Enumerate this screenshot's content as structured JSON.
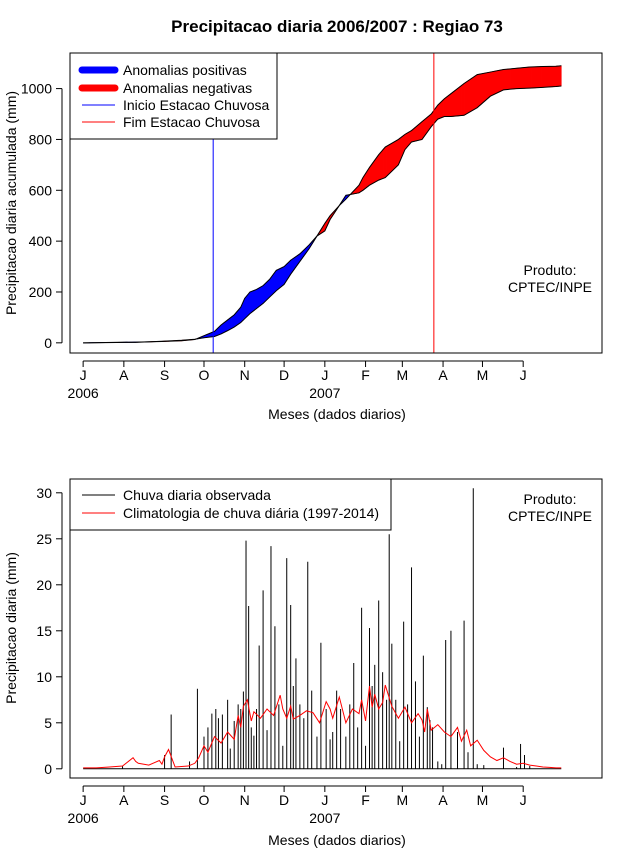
{
  "chart_data": [
    {
      "type": "area",
      "title": "Precipitacao diaria 2006/2007 : Regiao 73",
      "xlabel": "Meses (dados diarios)",
      "ylabel": "Precipitacao diaria acumulada (mm)",
      "ylim": [
        -40,
        1140
      ],
      "yticks": [
        0,
        200,
        400,
        600,
        800,
        1000
      ],
      "xlim": [
        -10,
        395
      ],
      "month_ticks": [
        {
          "label": "J",
          "day": 0
        },
        {
          "label": "A",
          "day": 31
        },
        {
          "label": "S",
          "day": 62
        },
        {
          "label": "O",
          "day": 92
        },
        {
          "label": "N",
          "day": 123
        },
        {
          "label": "D",
          "day": 153
        },
        {
          "label": "J",
          "day": 184
        },
        {
          "label": "F",
          "day": 215
        },
        {
          "label": "M",
          "day": 243
        },
        {
          "label": "A",
          "day": 274
        },
        {
          "label": "M",
          "day": 304
        },
        {
          "label": "J",
          "day": 335
        }
      ],
      "year_labels": [
        {
          "label": "2006",
          "day": 0
        },
        {
          "label": "2007",
          "day": 184
        }
      ],
      "onset_day": 99,
      "end_day": 267,
      "series": [
        {
          "name": "observed_cumulative",
          "x": [
            0,
            40,
            60,
            75,
            85,
            92,
            100,
            105,
            110,
            115,
            120,
            123,
            127,
            132,
            137,
            142,
            147,
            153,
            158,
            165,
            172,
            178,
            184,
            188,
            195,
            200,
            210,
            213,
            218,
            225,
            230,
            240,
            245,
            250,
            258,
            265,
            270,
            275,
            280,
            290,
            300,
            310,
            320,
            330,
            340,
            350,
            360,
            364
          ],
          "y": [
            0,
            3,
            5,
            8,
            13,
            28,
            45,
            70,
            90,
            110,
            140,
            175,
            200,
            210,
            225,
            250,
            285,
            300,
            325,
            350,
            385,
            420,
            440,
            485,
            540,
            580,
            590,
            600,
            620,
            640,
            650,
            700,
            760,
            790,
            800,
            850,
            880,
            890,
            890,
            895,
            925,
            970,
            995,
            1000,
            1002,
            1005,
            1008,
            1010
          ]
        },
        {
          "name": "climatological_cumulative",
          "x": [
            0,
            40,
            60,
            75,
            85,
            92,
            100,
            105,
            110,
            115,
            120,
            123,
            127,
            132,
            137,
            142,
            147,
            153,
            158,
            165,
            172,
            178,
            184,
            188,
            195,
            200,
            210,
            213,
            218,
            225,
            230,
            240,
            245,
            250,
            258,
            265,
            270,
            275,
            280,
            290,
            300,
            310,
            320,
            330,
            340,
            350,
            360,
            364
          ],
          "y": [
            0,
            2,
            6,
            10,
            14,
            20,
            25,
            35,
            48,
            62,
            80,
            95,
            115,
            135,
            155,
            180,
            205,
            230,
            270,
            320,
            370,
            420,
            470,
            500,
            540,
            565,
            620,
            650,
            690,
            740,
            770,
            800,
            820,
            835,
            870,
            900,
            935,
            960,
            980,
            1020,
            1055,
            1065,
            1075,
            1080,
            1085,
            1087,
            1088,
            1090
          ]
        }
      ],
      "legend": [
        {
          "label": "Anomalias positivas",
          "color": "#0000ff"
        },
        {
          "label": "Anomalias negativas",
          "color": "#ff0000"
        },
        {
          "label": "Inicio Estacao Chuvosa",
          "color": "#0000ff"
        },
        {
          "label": "Fim Estacao Chuvosa",
          "color": "#ff0000"
        }
      ],
      "legend_position": "top-left",
      "annotation": [
        "Produto:",
        "CPTEC/INPE"
      ]
    },
    {
      "type": "line",
      "title": "",
      "xlabel": "Meses (dados diarios)",
      "ylabel": "Precipitacao diaria (mm)",
      "ylim": [
        -1,
        31.5
      ],
      "yticks": [
        0,
        5,
        10,
        15,
        20,
        25,
        30
      ],
      "xlim": [
        -10,
        395
      ],
      "month_ticks": [
        {
          "label": "J",
          "day": 0
        },
        {
          "label": "A",
          "day": 31
        },
        {
          "label": "S",
          "day": 62
        },
        {
          "label": "O",
          "day": 92
        },
        {
          "label": "N",
          "day": 123
        },
        {
          "label": "D",
          "day": 153
        },
        {
          "label": "J",
          "day": 184
        },
        {
          "label": "F",
          "day": 215
        },
        {
          "label": "M",
          "day": 243
        },
        {
          "label": "A",
          "day": 274
        },
        {
          "label": "M",
          "day": 304
        },
        {
          "label": "J",
          "day": 335
        }
      ],
      "year_labels": [
        {
          "label": "2006",
          "day": 0
        },
        {
          "label": "2007",
          "day": 184
        }
      ],
      "series": [
        {
          "name": "Chuva diaria observada",
          "style": "spikes",
          "x": [
            30,
            62,
            67,
            81,
            87,
            92,
            95,
            98,
            101,
            103,
            106,
            110,
            112,
            115,
            118,
            120,
            122,
            124,
            126,
            128,
            130,
            132,
            134,
            137,
            140,
            143,
            146,
            149,
            152,
            155,
            158,
            160,
            162,
            165,
            168,
            171,
            174,
            178,
            181,
            185,
            188,
            190,
            193,
            196,
            200,
            203,
            206,
            209,
            212,
            215,
            218,
            220,
            222,
            225,
            228,
            231,
            233,
            235,
            238,
            241,
            244,
            247,
            250,
            253,
            256,
            259,
            262,
            264,
            266,
            270,
            273,
            276,
            280,
            285,
            290,
            293,
            297,
            300,
            305,
            320,
            330,
            333,
            336,
            340
          ],
          "y": [
            0.3,
            1.5,
            5.9,
            0.8,
            8.7,
            3.5,
            4.5,
            6.0,
            6.5,
            5.5,
            5.9,
            7.5,
            2.2,
            5.2,
            7.0,
            6.5,
            8.4,
            24.8,
            17.7,
            4.5,
            3.6,
            6.5,
            13.4,
            19.4,
            4.2,
            24.2,
            15.5,
            7.0,
            2.5,
            22.9,
            17.8,
            9.0,
            12.0,
            7.0,
            5.5,
            22.5,
            8.5,
            3.5,
            13.7,
            6.5,
            3.2,
            4.0,
            8.5,
            6.5,
            3.5,
            7.0,
            11.5,
            4.5,
            17.5,
            2.5,
            15.3,
            9.0,
            11.3,
            18.3,
            10.5,
            7.5,
            25.5,
            13.6,
            7.5,
            3.0,
            16.0,
            7.0,
            21.9,
            9.5,
            3.5,
            12.3,
            6.7,
            5.3,
            4.5,
            0.8,
            0.5,
            14.0,
            15.0,
            4.0,
            16.1,
            1.8,
            30.5,
            0.5,
            0.4,
            2.3,
            0.2,
            2.7,
            1.5,
            0.3
          ]
        },
        {
          "name": "Climatologia de chuva diária (1997-2014)",
          "style": "line",
          "x": [
            0,
            10,
            20,
            30,
            38,
            40,
            42,
            50,
            58,
            60,
            62,
            65,
            70,
            80,
            85,
            88,
            92,
            95,
            100,
            105,
            110,
            115,
            118,
            120,
            122,
            125,
            128,
            130,
            135,
            140,
            145,
            150,
            152,
            155,
            158,
            160,
            165,
            170,
            175,
            180,
            185,
            188,
            190,
            195,
            200,
            205,
            210,
            212,
            215,
            218,
            220,
            222,
            225,
            228,
            230,
            235,
            240,
            245,
            250,
            255,
            258,
            260,
            262,
            265,
            270,
            275,
            280,
            285,
            288,
            292,
            295,
            300,
            305,
            310,
            315,
            320,
            325,
            330,
            335,
            340,
            345,
            350,
            355,
            360,
            364
          ],
          "y": [
            0.1,
            0.1,
            0.2,
            0.3,
            1.2,
            0.8,
            0.6,
            0.4,
            0.9,
            0.5,
            1.3,
            2.1,
            0.2,
            0.3,
            0.6,
            1.2,
            2.5,
            1.8,
            3.5,
            2.8,
            4.0,
            3.2,
            5.8,
            4.5,
            6.8,
            7.5,
            5.2,
            6.2,
            5.5,
            6.5,
            5.8,
            8.0,
            6.5,
            5.5,
            6.8,
            5.4,
            5.8,
            6.3,
            6.1,
            5.0,
            7.3,
            6.5,
            5.5,
            7.8,
            5.0,
            6.5,
            6.0,
            7.5,
            5.2,
            9.0,
            6.7,
            8.1,
            6.5,
            7.2,
            9.1,
            6.8,
            5.5,
            6.7,
            5.0,
            6.0,
            5.3,
            4.0,
            6.5,
            4.2,
            4.8,
            4.0,
            3.5,
            4.5,
            3.0,
            4.2,
            2.5,
            3.1,
            2.0,
            1.3,
            0.9,
            1.2,
            0.8,
            0.5,
            0.6,
            0.4,
            0.3,
            0.2,
            0.15,
            0.1,
            0.1
          ]
        }
      ],
      "legend": [
        {
          "label": "Chuva diaria observada",
          "color": "#000000"
        },
        {
          "label": "Climatologia de chuva diária (1997-2014)",
          "color": "#ff0000"
        }
      ],
      "legend_position": "top-left",
      "annotation": [
        "Produto:",
        "CPTEC/INPE"
      ]
    }
  ]
}
